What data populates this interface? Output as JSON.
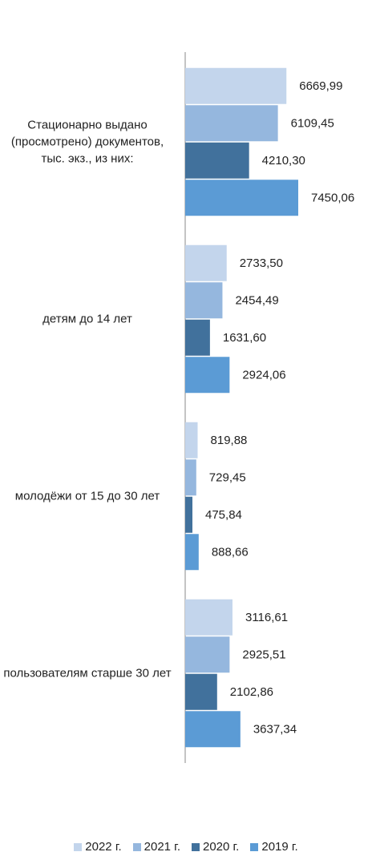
{
  "chart_data": {
    "type": "bar",
    "orientation": "horizontal",
    "categories": [
      "Стационарно выдано (просмотрено) документов, тыс. экз., из них:",
      "детям до 14 лет",
      "молодёжи от 15 до 30 лет",
      "пользователям старше 30 лет"
    ],
    "series": [
      {
        "name": "2022 г.",
        "color": "#c3d5ec",
        "values": [
          6669.99,
          2733.5,
          819.88,
          3116.61
        ],
        "value_labels": [
          "6669,99",
          "2733,50",
          "819,88",
          "3116,61"
        ]
      },
      {
        "name": "2021 г.",
        "color": "#95b7de",
        "values": [
          6109.45,
          2454.49,
          729.45,
          2925.51
        ],
        "value_labels": [
          "6109,45",
          "2454,49",
          "729,45",
          "2925,51"
        ]
      },
      {
        "name": "2020 г.",
        "color": "#41719c",
        "values": [
          4210.3,
          1631.6,
          475.84,
          2102.86
        ],
        "value_labels": [
          "4210,30",
          "1631,60",
          "475,84",
          "2102,86"
        ]
      },
      {
        "name": "2019 г.",
        "color": "#5b9bd5",
        "values": [
          7450.06,
          2924.06,
          888.66,
          3637.34
        ],
        "value_labels": [
          "7450,06",
          "2924,06",
          "888,66",
          "3637,34"
        ]
      }
    ],
    "legend": "bottom"
  }
}
